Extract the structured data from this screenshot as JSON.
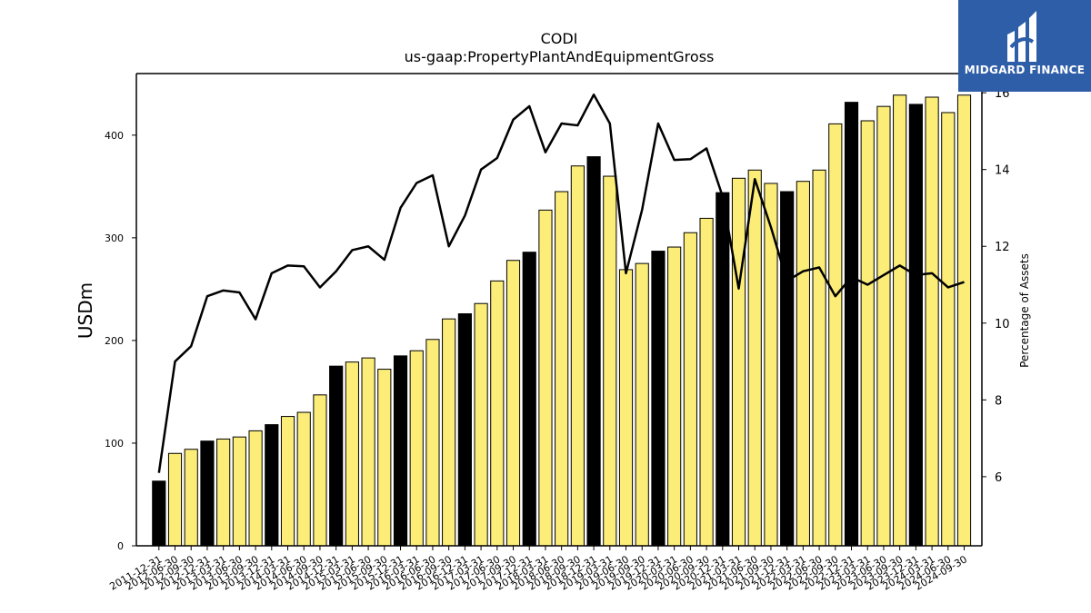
{
  "chart_data": {
    "type": "bar",
    "title": "CODI",
    "subtitle": "us-gaap:PropertyPlantAndEquipmentGross",
    "ylabel": "USDm",
    "y2label": "Percentage of Assets",
    "ylim": [
      0,
      460
    ],
    "y2lim": [
      4.2,
      16.5
    ],
    "yticks": [
      0,
      100,
      200,
      300,
      400
    ],
    "y2ticks": [
      6,
      8,
      10,
      12,
      14,
      16
    ],
    "bar_colors": {
      "annual": "#000000",
      "quarterly": "#fcec78"
    },
    "line_color": "#000000",
    "categories": [
      "2011-12-31",
      "2012-06-30",
      "2012-09-30",
      "2012-12-31",
      "2013-03-31",
      "2013-06-30",
      "2013-09-30",
      "2013-12-31",
      "2014-03-31",
      "2014-06-30",
      "2014-09-30",
      "2014-12-31",
      "2015-03-31",
      "2015-06-30",
      "2015-09-30",
      "2015-12-31",
      "2016-03-31",
      "2016-06-30",
      "2016-09-30",
      "2016-12-31",
      "2017-03-31",
      "2017-06-30",
      "2017-09-30",
      "2017-12-31",
      "2018-03-31",
      "2018-06-30",
      "2018-09-30",
      "2018-12-31",
      "2019-03-31",
      "2019-06-30",
      "2019-09-30",
      "2019-12-31",
      "2020-03-31",
      "2020-06-30",
      "2020-09-30",
      "2020-12-31",
      "2021-03-31",
      "2021-06-30",
      "2021-09-30",
      "2021-12-31",
      "2022-03-31",
      "2022-06-30",
      "2022-09-30",
      "2022-12-31",
      "2023-03-31",
      "2023-06-30",
      "2023-09-30",
      "2023-12-31",
      "2024-03-31",
      "2024-06-30",
      "2024-09-30"
    ],
    "series": [
      {
        "values": [
          63,
          90,
          94,
          102,
          104,
          106,
          112,
          118,
          126,
          130,
          147,
          175,
          179,
          183,
          172,
          185,
          190,
          201,
          221,
          226,
          236,
          258,
          278,
          286,
          327,
          345,
          370,
          379,
          360,
          269,
          275,
          287,
          291,
          305,
          319,
          344,
          358,
          366,
          353,
          345,
          355,
          366,
          411,
          432,
          414,
          428,
          439,
          430,
          437,
          422,
          439
        ]
      },
      {
        "values": [
          6.1,
          9.0,
          9.4,
          10.7,
          10.85,
          10.8,
          10.1,
          11.3,
          11.5,
          11.48,
          10.93,
          11.35,
          11.9,
          12.0,
          11.65,
          13.0,
          13.65,
          13.85,
          12.0,
          12.8,
          14.0,
          14.3,
          15.3,
          15.65,
          14.45,
          15.2,
          15.15,
          15.95,
          15.2,
          11.3,
          12.95,
          15.2,
          14.25,
          14.27,
          14.55,
          13.3,
          10.9,
          13.75,
          12.5,
          11.1,
          11.35,
          11.45,
          10.7,
          11.2,
          11.0,
          11.25,
          11.5,
          11.25,
          11.3,
          10.93,
          11.07
        ]
      }
    ],
    "annual_flags": [
      1,
      0,
      0,
      1,
      0,
      0,
      0,
      1,
      0,
      0,
      0,
      1,
      0,
      0,
      0,
      1,
      0,
      0,
      0,
      1,
      0,
      0,
      0,
      1,
      0,
      0,
      0,
      1,
      0,
      0,
      0,
      1,
      0,
      0,
      0,
      1,
      0,
      0,
      0,
      1,
      0,
      0,
      0,
      1,
      0,
      0,
      0,
      1,
      0,
      0,
      0
    ],
    "legend": "none",
    "grid": false
  },
  "logo": {
    "text": "MIDGARD FINANCE"
  }
}
